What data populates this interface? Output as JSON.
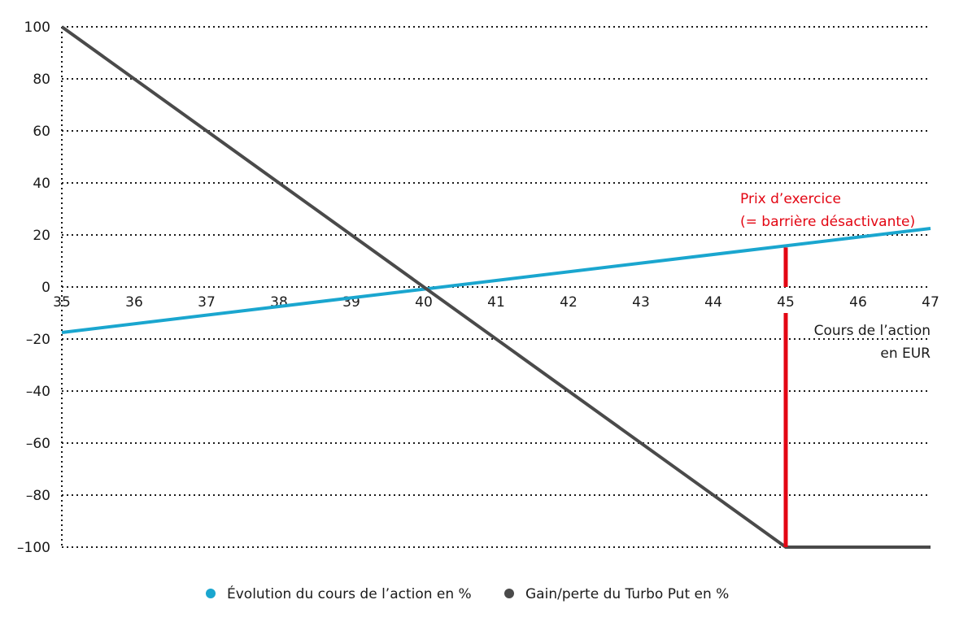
{
  "chart_data": {
    "type": "line",
    "xlabel": [
      "Cours de l’action",
      "en EUR"
    ],
    "ylabel": "",
    "xlim": [
      35,
      47
    ],
    "ylim": [
      -100,
      100
    ],
    "x_ticks": [
      "35",
      "36",
      "37",
      "38",
      "39",
      "40",
      "41",
      "42",
      "43",
      "44",
      "45",
      "46",
      "47"
    ],
    "y_ticks": [
      "100",
      "80",
      "60",
      "40",
      "20",
      "0",
      "–20",
      "–40",
      "–60",
      "–80",
      "–100"
    ],
    "grid": "horizontal dotted",
    "legend_position": "bottom",
    "series": [
      {
        "name": "Évolution du cours de l’action en %",
        "color": "#1aa6cf",
        "x": [
          35,
          47
        ],
        "y": [
          -17.5,
          22.5
        ]
      },
      {
        "name": "Gain/perte du Turbo Put en %",
        "color": "#4a4a4a",
        "x": [
          35,
          45,
          47
        ],
        "y": [
          100,
          -100,
          -100
        ]
      }
    ],
    "annotations": [
      {
        "text": [
          "Prix d’exercice",
          "(= barrière désactivante)"
        ],
        "x": 45,
        "color": "#e30613"
      }
    ]
  }
}
